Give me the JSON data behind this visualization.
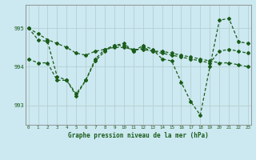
{
  "title": "Graphe pression niveau de la mer (hPa)",
  "bg_color": "#cce8f0",
  "grid_color": "#b0cccc",
  "line_color": "#1a5c1a",
  "xmin": 0,
  "xmax": 23,
  "ymin": 992.5,
  "ymax": 995.6,
  "yticks": [
    993,
    994,
    995
  ],
  "xticks": [
    0,
    1,
    2,
    3,
    4,
    5,
    6,
    7,
    8,
    9,
    10,
    11,
    12,
    13,
    14,
    15,
    16,
    17,
    18,
    19,
    20,
    21,
    22,
    23
  ],
  "series": [
    [
      995.0,
      994.85,
      994.7,
      994.6,
      994.5,
      994.35,
      994.3,
      994.4,
      994.45,
      994.5,
      994.5,
      994.45,
      994.45,
      994.4,
      994.4,
      994.35,
      994.3,
      994.25,
      994.2,
      994.15,
      994.1,
      994.1,
      994.05,
      994.0
    ],
    [
      995.0,
      994.7,
      994.65,
      993.75,
      993.65,
      993.3,
      993.65,
      994.2,
      994.45,
      994.55,
      994.55,
      994.4,
      994.5,
      994.4,
      994.35,
      994.3,
      994.25,
      994.2,
      994.15,
      994.1,
      994.4,
      994.45,
      994.4,
      994.35
    ],
    [
      994.2,
      994.1,
      994.1,
      993.65,
      993.65,
      993.25,
      993.65,
      994.15,
      994.4,
      994.55,
      994.6,
      994.4,
      994.55,
      994.45,
      994.2,
      994.15,
      993.6,
      993.1,
      992.75,
      994.0,
      995.2,
      995.25,
      994.65,
      994.6
    ]
  ]
}
